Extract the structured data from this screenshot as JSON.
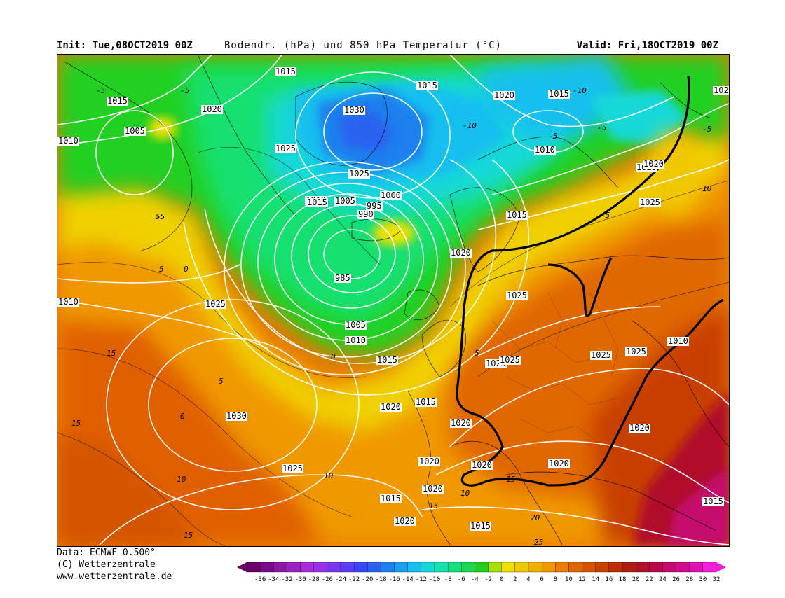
{
  "header": {
    "init": "Init: Tue,08OCT2019 00Z",
    "title": "Bodendr. (hPa) und 850 hPa Temperatur (°C)",
    "valid": "Valid: Fri,18OCT2019 00Z"
  },
  "footer": {
    "line1": "Data: ECMWF  0.500°",
    "line2": "(C) Wetterzentrale",
    "line3": "www.wetterzentrale.de"
  },
  "colorbar": {
    "ticks": [
      "-36",
      "-34",
      "-32",
      "-30",
      "-28",
      "-26",
      "-24",
      "-22",
      "-20",
      "-18",
      "-16",
      "-14",
      "-12",
      "-10",
      "-8",
      "-6",
      "-4",
      "-2",
      "0",
      "2",
      "4",
      "6",
      "8",
      "10",
      "12",
      "14",
      "16",
      "18",
      "20",
      "22",
      "24",
      "26",
      "28",
      "30",
      "32"
    ],
    "colors": [
      "#6a006a",
      "#7a0c8a",
      "#8a1aa6",
      "#9a22c0",
      "#a82ad8",
      "#9a30e6",
      "#7a36ee",
      "#5c3cf2",
      "#3a46f4",
      "#2a62f0",
      "#1e80ee",
      "#1aa0ee",
      "#18c0ee",
      "#14d8d8",
      "#14e0b0",
      "#14e080",
      "#1ad850",
      "#20d020",
      "#a8e000",
      "#f0e000",
      "#f0c800",
      "#f0b000",
      "#f09800",
      "#ec8000",
      "#e06800",
      "#d45400",
      "#c84000",
      "#bc2c00",
      "#b01c10",
      "#b0102a",
      "#b80a4a",
      "#c40a6c",
      "#d00a90",
      "#e010b4",
      "#f020d8"
    ]
  },
  "isobars": {
    "labels": [
      "1015",
      "1015",
      "1015",
      "1020",
      "1030",
      "1025",
      "1025",
      "1005",
      "1010",
      "1020",
      "1015",
      "1010",
      "1025",
      "1010",
      "1005",
      "1000",
      "995",
      "990",
      "985",
      "1015",
      "1020",
      "1025",
      "1010",
      "1025",
      "1005",
      "1010",
      "1015",
      "1020",
      "1015",
      "1025",
      "1025",
      "1020",
      "1030",
      "1025",
      "1020",
      "1020",
      "1020",
      "1020",
      "1020",
      "1020",
      "1015",
      "1015",
      "1020",
      "1025",
      "1020",
      "1015",
      "1010",
      "1020",
      "1025",
      "1015",
      "102"
    ],
    "temperature_labels": [
      "-5",
      "-5",
      "-10",
      "-10",
      "-5",
      "-5",
      "-5",
      "0",
      "0",
      "-5",
      "5",
      "10",
      "15",
      "15",
      "15",
      "10",
      "5",
      "0",
      "5",
      "10",
      "15",
      "20",
      "25",
      "15",
      "-5",
      "5",
      "10"
    ]
  },
  "map": {
    "region": "North Atlantic and Europe",
    "low_center_hpa": "985",
    "colors": {
      "cold": "#20d020",
      "warm": "#f0a000",
      "hot": "#c40a6c"
    }
  }
}
